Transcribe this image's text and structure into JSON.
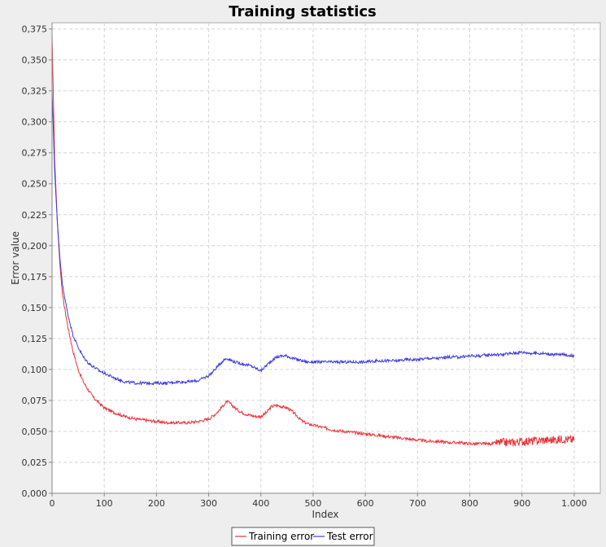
{
  "chart_data": {
    "type": "line",
    "title": "Training statistics",
    "xlabel": "Index",
    "ylabel": "Error value",
    "xlim": [
      0,
      1050
    ],
    "ylim": [
      0,
      0.38
    ],
    "x_ticks": [
      0,
      100,
      200,
      300,
      400,
      500,
      600,
      700,
      800,
      900,
      1000
    ],
    "x_tick_labels": [
      "0",
      "100",
      "200",
      "300",
      "400",
      "500",
      "600",
      "700",
      "800",
      "900",
      "1.000"
    ],
    "y_ticks": [
      0,
      0.025,
      0.05,
      0.075,
      0.1,
      0.125,
      0.15,
      0.175,
      0.2,
      0.225,
      0.25,
      0.275,
      0.3,
      0.325,
      0.35,
      0.375
    ],
    "y_tick_labels": [
      "0,000",
      "0,025",
      "0,050",
      "0,075",
      "0,100",
      "0,125",
      "0,150",
      "0,175",
      "0,200",
      "0,225",
      "0,250",
      "0,275",
      "0,300",
      "0,325",
      "0,350",
      "0,375"
    ],
    "grid": true,
    "legend_position": "bottom-center",
    "series": [
      {
        "name": "Training error",
        "color": "#e8353b",
        "x": [
          0,
          2,
          5,
          10,
          15,
          20,
          30,
          40,
          50,
          60,
          70,
          80,
          90,
          100,
          120,
          140,
          160,
          180,
          200,
          220,
          240,
          260,
          280,
          300,
          310,
          320,
          330,
          335,
          340,
          350,
          360,
          370,
          380,
          390,
          400,
          410,
          420,
          430,
          440,
          450,
          460,
          470,
          480,
          490,
          500,
          520,
          540,
          560,
          580,
          600,
          620,
          640,
          660,
          680,
          700,
          720,
          740,
          760,
          780,
          800,
          820,
          840,
          860,
          880,
          900,
          920,
          940,
          960,
          980,
          1000
        ],
        "y": [
          0.37,
          0.33,
          0.27,
          0.22,
          0.185,
          0.16,
          0.135,
          0.115,
          0.1,
          0.09,
          0.083,
          0.077,
          0.073,
          0.069,
          0.065,
          0.062,
          0.06,
          0.059,
          0.058,
          0.057,
          0.057,
          0.057,
          0.058,
          0.06,
          0.063,
          0.067,
          0.072,
          0.074,
          0.073,
          0.069,
          0.066,
          0.064,
          0.063,
          0.062,
          0.062,
          0.065,
          0.07,
          0.071,
          0.07,
          0.069,
          0.066,
          0.062,
          0.058,
          0.056,
          0.055,
          0.053,
          0.051,
          0.05,
          0.049,
          0.048,
          0.047,
          0.046,
          0.045,
          0.044,
          0.043,
          0.042,
          0.042,
          0.041,
          0.041,
          0.04,
          0.04,
          0.04,
          0.041,
          0.041,
          0.042,
          0.042,
          0.043,
          0.043,
          0.044,
          0.043
        ]
      },
      {
        "name": "Test error",
        "color": "#3b3be0",
        "x": [
          0,
          2,
          5,
          10,
          15,
          20,
          30,
          40,
          50,
          60,
          70,
          80,
          90,
          100,
          120,
          140,
          160,
          180,
          200,
          220,
          240,
          260,
          280,
          300,
          310,
          320,
          330,
          335,
          340,
          350,
          360,
          370,
          380,
          390,
          400,
          410,
          420,
          430,
          440,
          450,
          460,
          470,
          480,
          490,
          500,
          520,
          540,
          560,
          580,
          600,
          620,
          640,
          660,
          680,
          700,
          720,
          740,
          760,
          780,
          800,
          820,
          840,
          860,
          880,
          900,
          920,
          940,
          960,
          980,
          1000
        ],
        "y": [
          0.325,
          0.3,
          0.26,
          0.22,
          0.19,
          0.168,
          0.145,
          0.128,
          0.118,
          0.11,
          0.105,
          0.102,
          0.099,
          0.097,
          0.093,
          0.09,
          0.089,
          0.089,
          0.089,
          0.089,
          0.09,
          0.09,
          0.091,
          0.095,
          0.099,
          0.104,
          0.108,
          0.109,
          0.108,
          0.106,
          0.105,
          0.104,
          0.103,
          0.101,
          0.099,
          0.103,
          0.107,
          0.11,
          0.111,
          0.111,
          0.109,
          0.108,
          0.107,
          0.106,
          0.106,
          0.106,
          0.106,
          0.106,
          0.106,
          0.106,
          0.107,
          0.107,
          0.107,
          0.108,
          0.108,
          0.109,
          0.109,
          0.11,
          0.11,
          0.111,
          0.111,
          0.112,
          0.112,
          0.113,
          0.114,
          0.113,
          0.113,
          0.112,
          0.112,
          0.111
        ]
      }
    ]
  }
}
